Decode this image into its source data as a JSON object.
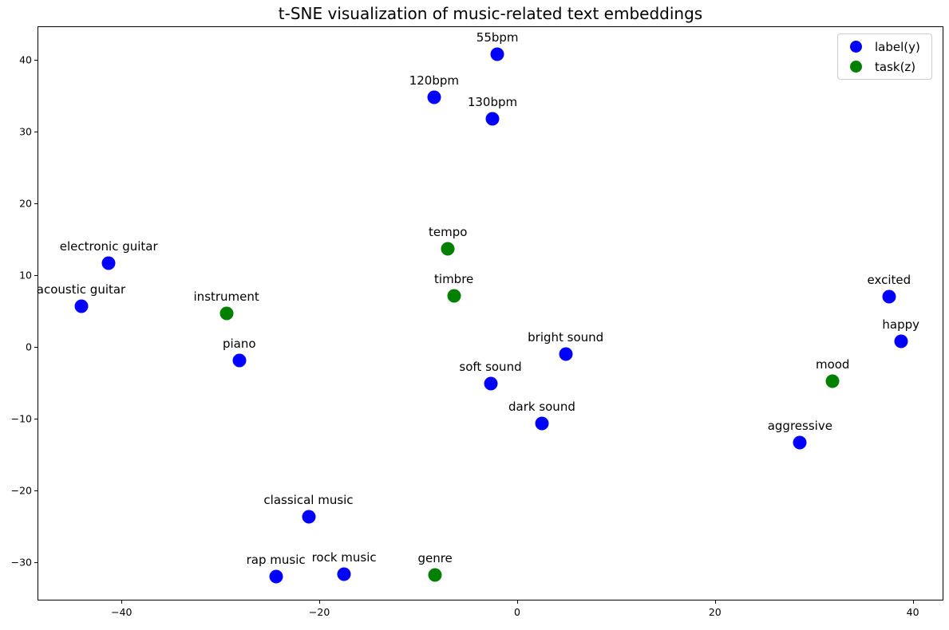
{
  "title": "t-SNE visualization of music-related text embeddings",
  "colors": {
    "label_y": "#0000ff",
    "task_z": "#008000",
    "axis": "#000000",
    "legend_border": "#cccccc"
  },
  "legend": {
    "items": [
      {
        "label": "label(y)",
        "color": "#0000ff"
      },
      {
        "label": "task(z)",
        "color": "#008000"
      }
    ]
  },
  "chart_data": {
    "type": "scatter",
    "title": "t-SNE visualization of music-related text embeddings",
    "xlabel": "",
    "ylabel": "",
    "xlim": [
      -48.5,
      43.1
    ],
    "ylim": [
      -35.3,
      44.7
    ],
    "x_ticks": [
      -40,
      -20,
      0,
      20,
      40
    ],
    "y_ticks": [
      -30,
      -20,
      -10,
      0,
      10,
      20,
      30,
      40
    ],
    "grid": false,
    "legend_position": "upper right",
    "marker_size_px": 17,
    "series": [
      {
        "name": "label(y)",
        "color": "#0000ff",
        "points": [
          {
            "label": "55bpm",
            "x": -2.0,
            "y": 40.8
          },
          {
            "label": "120bpm",
            "x": -8.4,
            "y": 34.8
          },
          {
            "label": "130bpm",
            "x": -2.5,
            "y": 31.8
          },
          {
            "label": "electronic guitar",
            "x": -41.3,
            "y": 11.7
          },
          {
            "label": "acoustic guitar",
            "x": -44.1,
            "y": 5.7
          },
          {
            "label": "piano",
            "x": -28.1,
            "y": -1.8
          },
          {
            "label": "bright sound",
            "x": 4.9,
            "y": -1.0
          },
          {
            "label": "soft sound",
            "x": -2.7,
            "y": -5.1
          },
          {
            "label": "dark sound",
            "x": 2.5,
            "y": -10.6
          },
          {
            "label": "excited",
            "x": 37.6,
            "y": 7.0
          },
          {
            "label": "happy",
            "x": 38.8,
            "y": 0.8
          },
          {
            "label": "aggressive",
            "x": 28.6,
            "y": -13.3
          },
          {
            "label": "classical music",
            "x": -21.1,
            "y": -23.6
          },
          {
            "label": "rap music",
            "x": -24.4,
            "y": -32.0
          },
          {
            "label": "rock music",
            "x": -17.5,
            "y": -31.6
          }
        ]
      },
      {
        "name": "task(z)",
        "color": "#008000",
        "points": [
          {
            "label": "tempo",
            "x": -7.0,
            "y": 13.7
          },
          {
            "label": "timbre",
            "x": -6.4,
            "y": 7.1
          },
          {
            "label": "instrument",
            "x": -29.4,
            "y": 4.7
          },
          {
            "label": "mood",
            "x": 31.9,
            "y": -4.7
          },
          {
            "label": "genre",
            "x": -8.3,
            "y": -31.7
          }
        ]
      }
    ]
  }
}
